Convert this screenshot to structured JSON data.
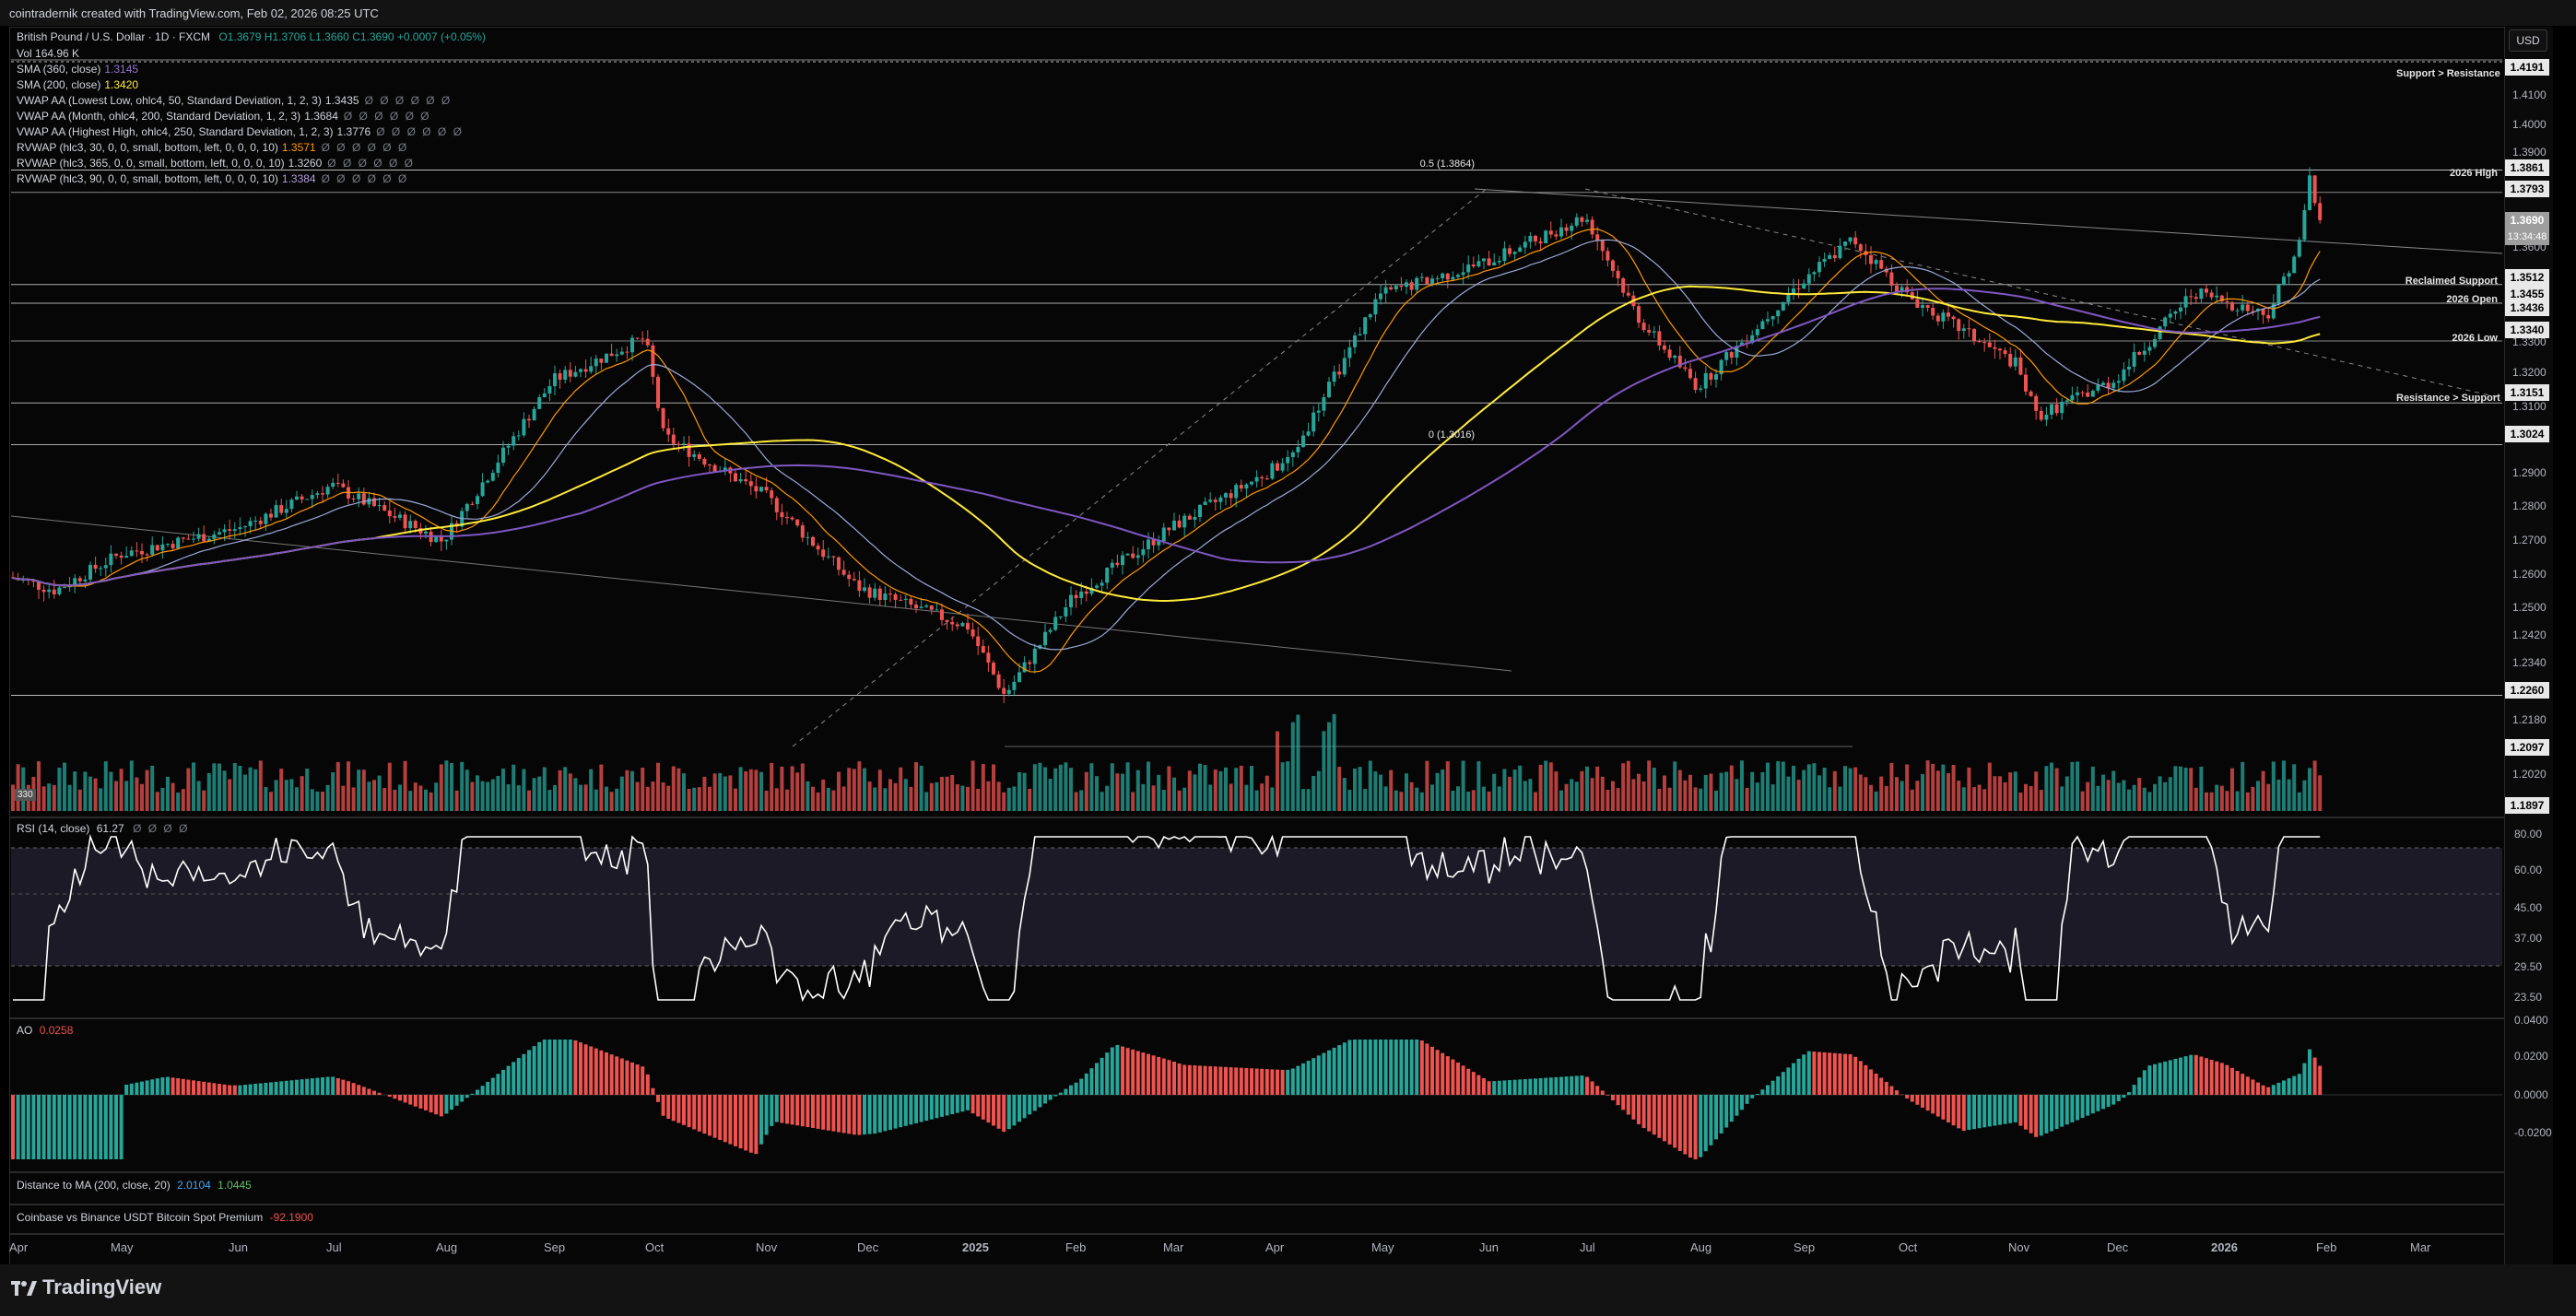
{
  "header": {
    "created": "cointradernik created with TradingView.com, Feb 02, 2026 08:25 UTC"
  },
  "symbol": {
    "title": "British Pound / U.S. Dollar · 1D · FXCM",
    "ohlc": "O1.3679 H1.3706 L1.3660 C1.3690 +0.0007 (+0.05%)",
    "vol": "Vol 164.96 K"
  },
  "indicators": [
    {
      "label": "SMA (360, close)",
      "value": "1.3145",
      "color": "#9575cd"
    },
    {
      "label": "SMA (200, close)",
      "value": "1.3420",
      "color": "#ffeb3b"
    },
    {
      "label": "VWAP AA (Lowest Low, ohlc4, 50, Standard Deviation, 1, 2, 3)",
      "value": "1.3435",
      "color": "#d1d4dc",
      "dots": "Ø Ø Ø Ø Ø Ø"
    },
    {
      "label": "VWAP AA (Month, ohlc4, 200, Standard Deviation, 1, 2, 3)",
      "value": "1.3684",
      "color": "#d1d4dc",
      "dots": "Ø Ø Ø Ø Ø Ø"
    },
    {
      "label": "VWAP AA (Highest High, ohlc4, 250, Standard Deviation, 1, 2, 3)",
      "value": "1.3776",
      "color": "#d1d4dc",
      "dots": "Ø Ø Ø Ø Ø Ø"
    },
    {
      "label": "RVWAP (hlc3, 30, 0, 0, small, bottom, left, 0, 0, 0, 10)",
      "value": "1.3571",
      "color": "#ff9800",
      "dots": "Ø Ø Ø Ø Ø Ø"
    },
    {
      "label": "RVWAP (hlc3, 365, 0, 0, small, bottom, left, 0, 0, 0, 10)",
      "value": "1.3260",
      "color": "#d1d4dc",
      "dots": "Ø Ø Ø Ø Ø Ø"
    },
    {
      "label": "RVWAP (hlc3, 90, 0, 0, small, bottom, left, 0, 0, 0, 10)",
      "value": "1.3384",
      "color": "#b39ddb",
      "dots": "Ø Ø Ø Ø Ø Ø"
    }
  ],
  "currency_button": "USD",
  "price_axis": [
    "1.4100",
    "1.4000",
    "1.3900",
    "1.3600",
    "1.3300",
    "1.3200",
    "1.3100",
    "1.2900",
    "1.2800",
    "1.2700",
    "1.2600",
    "1.2500",
    "1.2420",
    "1.2340",
    "1.2180",
    "1.2020"
  ],
  "price_badges": [
    {
      "v": "1.4191",
      "y": 0.0
    },
    {
      "v": "1.3861",
      "y": 0.0
    },
    {
      "v": "1.3793",
      "y": 0.0
    },
    {
      "v": "1.3690",
      "y": 0.0,
      "sub": "13:34:48"
    },
    {
      "v": "1.3512",
      "y": 0.0
    },
    {
      "v": "1.3455",
      "y": 0.0
    },
    {
      "v": "1.3436",
      "y": 0.0
    },
    {
      "v": "1.3340",
      "y": 0.0
    },
    {
      "v": "1.3151",
      "y": 0.0
    },
    {
      "v": "1.3024",
      "y": 0.0
    },
    {
      "v": "1.2260",
      "y": 0.0
    },
    {
      "v": "1.2097",
      "y": 0.0
    },
    {
      "v": "1.1897",
      "y": 0.0
    }
  ],
  "levels": {
    "support_resistance": "Support > Resistance",
    "high_2026": "2026 High",
    "reclaimed": "Reclaimed Support",
    "open_2026": "2026 Open",
    "low_2026": "2026 Low",
    "resistance_support": "Resistance > Support",
    "fib_05": "0.5 (1.3864)",
    "fib_0": "0 (1.3016)"
  },
  "volume_badge": "330",
  "rsi": {
    "label": "RSI (14, close)",
    "value": "61.27",
    "dots": "Ø Ø Ø Ø",
    "ticks": [
      "80.00",
      "60.00",
      "45.00",
      "37.00",
      "29.50",
      "23.50"
    ]
  },
  "ao": {
    "label": "AO",
    "value": "0.0258",
    "ticks": [
      "0.0400",
      "0.0200",
      "0.0000",
      "-0.0200"
    ]
  },
  "distance": {
    "label": "Distance to MA (200, close, 20)",
    "v1": "2.0104",
    "v2": "1.0445"
  },
  "premium": {
    "label": "Coinbase vs Binance USDT Bitcoin Spot Premium",
    "value": "-92.1900"
  },
  "time_axis": [
    "Apr",
    "May",
    "Jun",
    "Jul",
    "Aug",
    "Sep",
    "Oct",
    "Nov",
    "Dec",
    "2025",
    "Feb",
    "Mar",
    "Apr",
    "May",
    "Jun",
    "Jul",
    "Aug",
    "Sep",
    "Oct",
    "Nov",
    "Dec",
    "2026",
    "Feb",
    "Mar"
  ],
  "brand": "TradingView",
  "colors": {
    "up": "#26a69a",
    "down": "#ef5350",
    "sma200": "#ffeb3b",
    "sma360": "#7e57c2",
    "rvwap30": "#ff9800",
    "vwap_month": "#9fa8da"
  }
}
